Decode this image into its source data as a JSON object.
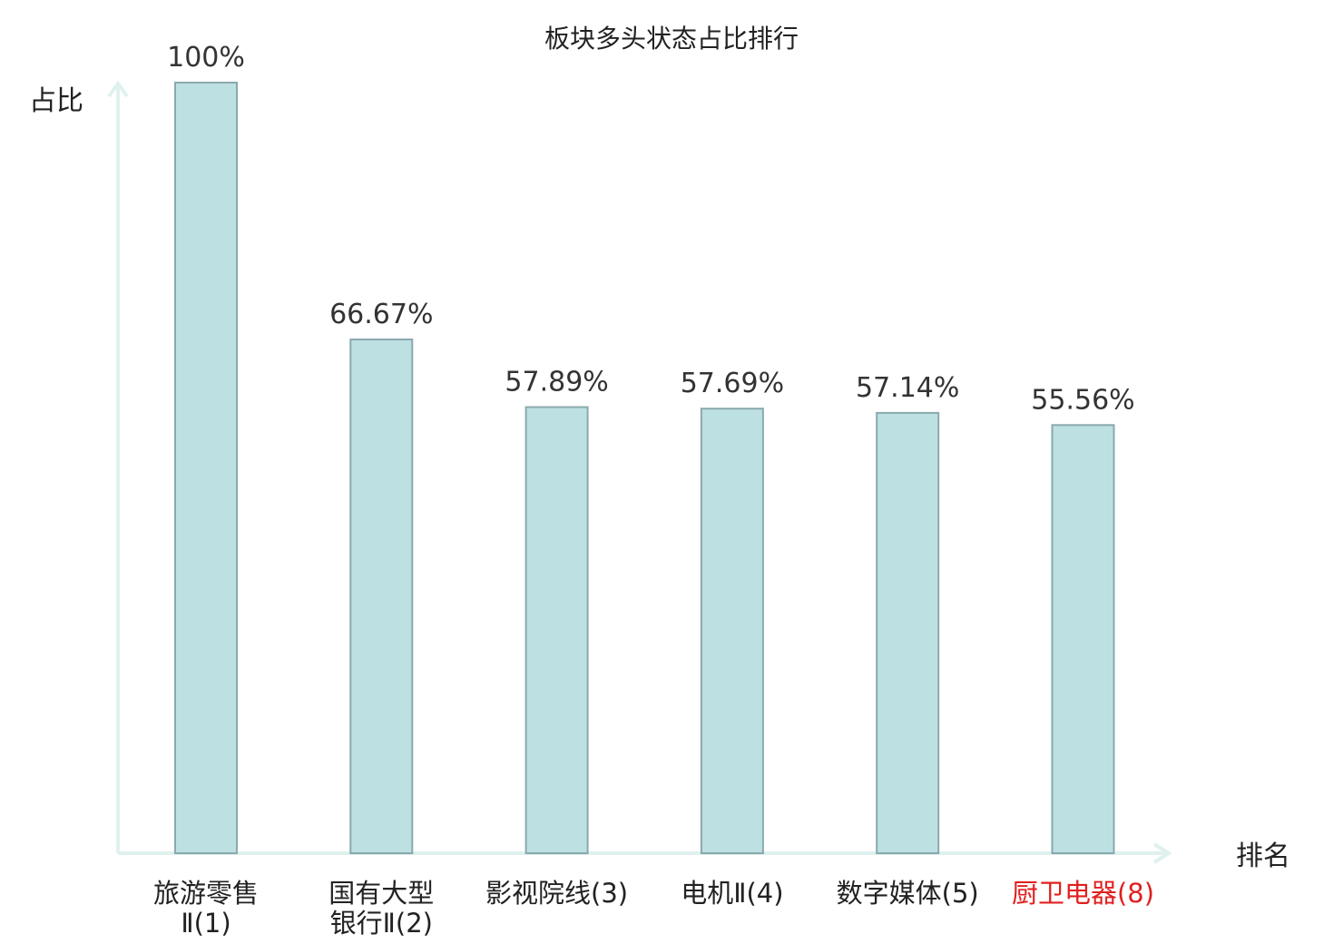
{
  "chart_data": {
    "type": "bar",
    "title": "板块多头状态占比排行",
    "xlabel": "排名",
    "ylabel": "占比",
    "ylim": [
      0,
      100
    ],
    "grid": false,
    "categories": [
      {
        "lines": [
          "旅游零售",
          "Ⅱ(1)"
        ],
        "highlight": false
      },
      {
        "lines": [
          "国有大型",
          "银行Ⅱ(2)"
        ],
        "highlight": false
      },
      {
        "lines": [
          "影视院线(3)"
        ],
        "highlight": false
      },
      {
        "lines": [
          "电机Ⅱ(4)"
        ],
        "highlight": false
      },
      {
        "lines": [
          "数字媒体(5)"
        ],
        "highlight": false
      },
      {
        "lines": [
          "厨卫电器(8)"
        ],
        "highlight": true
      }
    ],
    "values": [
      100,
      66.67,
      57.89,
      57.69,
      57.14,
      55.56
    ],
    "value_labels": [
      "100%",
      "66.67%",
      "57.89%",
      "57.69%",
      "57.14%",
      "55.56%"
    ]
  },
  "colors": {
    "bar_fill": "#bde0e3",
    "bar_stroke": "#8aa9ad",
    "axis": "#dff1ee",
    "highlight_text": "#e02020",
    "text": "#222222"
  }
}
